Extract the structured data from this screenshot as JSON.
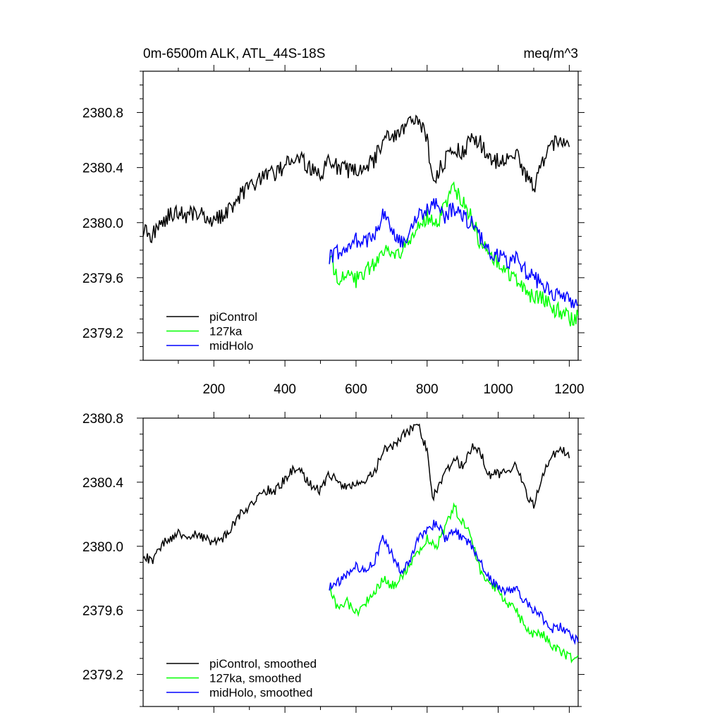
{
  "chart_data": [
    {
      "type": "line",
      "title_left": "0m-6500m ALK, ATL_44S-18S",
      "title_right": "meq/m^3",
      "xlabel": "",
      "ylabel": "",
      "xlim": [
        1,
        1225
      ],
      "ylim": [
        2379.0,
        2381.1
      ],
      "xticks": [
        200,
        400,
        600,
        800,
        1000,
        1200
      ],
      "xtick_labels": [
        "200",
        "400",
        "600",
        "800",
        "1000",
        "1200"
      ],
      "yticks": [
        2379.2,
        2379.6,
        2380.0,
        2380.4,
        2380.8
      ],
      "ytick_labels": [
        "2379.2",
        "2379.6",
        "2380.0",
        "2380.4",
        "2380.8"
      ],
      "grid": false,
      "legend_position": "bottom-left",
      "series": [
        {
          "name": "piControl",
          "color": "#000000",
          "x": [
            1,
            25,
            50,
            75,
            100,
            125,
            150,
            175,
            200,
            225,
            250,
            275,
            300,
            325,
            350,
            375,
            400,
            425,
            450,
            475,
            500,
            525,
            550,
            575,
            600,
            625,
            650,
            675,
            700,
            725,
            750,
            775,
            800,
            815,
            825,
            850,
            875,
            900,
            925,
            950,
            975,
            1000,
            1025,
            1050,
            1075,
            1100,
            1125,
            1150,
            1175,
            1200
          ],
          "y": [
            2379.95,
            2379.9,
            2380.0,
            2380.05,
            2380.08,
            2380.05,
            2380.08,
            2380.05,
            2380.02,
            2380.05,
            2380.12,
            2380.2,
            2380.25,
            2380.3,
            2380.35,
            2380.35,
            2380.42,
            2380.48,
            2380.45,
            2380.38,
            2380.35,
            2380.45,
            2380.4,
            2380.38,
            2380.38,
            2380.42,
            2380.45,
            2380.6,
            2380.62,
            2380.68,
            2380.72,
            2380.75,
            2380.6,
            2380.3,
            2380.35,
            2380.45,
            2380.55,
            2380.5,
            2380.62,
            2380.58,
            2380.45,
            2380.45,
            2380.48,
            2380.5,
            2380.35,
            2380.25,
            2380.45,
            2380.55,
            2380.62,
            2380.55
          ]
        },
        {
          "name": "127ka",
          "color": "#00ff00",
          "x": [
            525,
            550,
            575,
            600,
            625,
            650,
            675,
            700,
            725,
            750,
            775,
            800,
            825,
            850,
            875,
            900,
            925,
            950,
            975,
            1000,
            1025,
            1050,
            1075,
            1100,
            1125,
            1150,
            1175,
            1200,
            1225
          ],
          "y": [
            2379.75,
            2379.6,
            2379.65,
            2379.58,
            2379.65,
            2379.7,
            2379.8,
            2379.75,
            2379.8,
            2379.88,
            2379.95,
            2380.05,
            2380.0,
            2380.1,
            2380.25,
            2380.15,
            2380.05,
            2379.85,
            2379.78,
            2379.72,
            2379.65,
            2379.6,
            2379.5,
            2379.45,
            2379.45,
            2379.38,
            2379.35,
            2379.3,
            2379.32
          ]
        },
        {
          "name": "midHolo",
          "color": "#0000ff",
          "x": [
            525,
            550,
            575,
            600,
            625,
            650,
            675,
            700,
            725,
            750,
            775,
            800,
            825,
            850,
            875,
            900,
            925,
            950,
            975,
            1000,
            1025,
            1050,
            1075,
            1100,
            1125,
            1150,
            1175,
            1200,
            1225
          ],
          "y": [
            2379.75,
            2379.78,
            2379.82,
            2379.88,
            2379.85,
            2379.9,
            2380.05,
            2379.95,
            2379.85,
            2379.9,
            2380.05,
            2380.1,
            2380.15,
            2380.05,
            2380.1,
            2380.05,
            2380.0,
            2379.9,
            2379.8,
            2379.75,
            2379.72,
            2379.75,
            2379.65,
            2379.6,
            2379.55,
            2379.48,
            2379.5,
            2379.45,
            2379.4
          ]
        }
      ],
      "noise_amplitude": 0.06
    },
    {
      "type": "line",
      "xlabel": "",
      "ylabel": "",
      "xlim": [
        1,
        1225
      ],
      "ylim": [
        2379.0,
        2380.8
      ],
      "xticks": [
        200,
        400,
        600,
        800,
        1000,
        1200
      ],
      "yticks": [
        2379.2,
        2379.6,
        2380.0,
        2380.4,
        2380.8
      ],
      "ytick_labels": [
        "2379.2",
        "2379.6",
        "2380.0",
        "2380.4",
        "2380.8"
      ],
      "grid": false,
      "legend_position": "bottom-left",
      "series": [
        {
          "name": "piControl, smoothed",
          "color": "#000000",
          "x": [
            1,
            25,
            50,
            75,
            100,
            125,
            150,
            175,
            200,
            225,
            250,
            275,
            300,
            325,
            350,
            375,
            400,
            425,
            450,
            475,
            500,
            525,
            550,
            575,
            600,
            625,
            650,
            675,
            700,
            725,
            750,
            775,
            800,
            815,
            825,
            850,
            875,
            900,
            925,
            950,
            975,
            1000,
            1025,
            1050,
            1075,
            1100,
            1125,
            1150,
            1175,
            1200
          ],
          "y": [
            2379.95,
            2379.9,
            2380.0,
            2380.05,
            2380.08,
            2380.05,
            2380.08,
            2380.05,
            2380.02,
            2380.05,
            2380.12,
            2380.2,
            2380.25,
            2380.3,
            2380.35,
            2380.35,
            2380.42,
            2380.48,
            2380.45,
            2380.38,
            2380.35,
            2380.45,
            2380.4,
            2380.38,
            2380.38,
            2380.42,
            2380.45,
            2380.6,
            2380.62,
            2380.68,
            2380.72,
            2380.75,
            2380.6,
            2380.3,
            2380.35,
            2380.45,
            2380.55,
            2380.5,
            2380.62,
            2380.58,
            2380.45,
            2380.45,
            2380.48,
            2380.5,
            2380.35,
            2380.25,
            2380.45,
            2380.55,
            2380.62,
            2380.55
          ]
        },
        {
          "name": "127ka, smoothed",
          "color": "#00ff00",
          "x": [
            525,
            550,
            575,
            600,
            625,
            650,
            675,
            700,
            725,
            750,
            775,
            800,
            825,
            850,
            875,
            900,
            925,
            950,
            975,
            1000,
            1025,
            1050,
            1075,
            1100,
            1125,
            1150,
            1175,
            1200,
            1225
          ],
          "y": [
            2379.75,
            2379.6,
            2379.65,
            2379.58,
            2379.65,
            2379.7,
            2379.8,
            2379.75,
            2379.8,
            2379.88,
            2379.95,
            2380.05,
            2380.0,
            2380.1,
            2380.25,
            2380.15,
            2380.05,
            2379.85,
            2379.78,
            2379.72,
            2379.65,
            2379.6,
            2379.5,
            2379.45,
            2379.45,
            2379.38,
            2379.35,
            2379.3,
            2379.32
          ]
        },
        {
          "name": "midHolo, smoothed",
          "color": "#0000ff",
          "x": [
            525,
            550,
            575,
            600,
            625,
            650,
            675,
            700,
            725,
            750,
            775,
            800,
            825,
            850,
            875,
            900,
            925,
            950,
            975,
            1000,
            1025,
            1050,
            1075,
            1100,
            1125,
            1150,
            1175,
            1200,
            1225
          ],
          "y": [
            2379.75,
            2379.78,
            2379.82,
            2379.88,
            2379.85,
            2379.9,
            2380.05,
            2379.95,
            2379.85,
            2379.9,
            2380.05,
            2380.1,
            2380.15,
            2380.05,
            2380.1,
            2380.05,
            2380.0,
            2379.9,
            2379.8,
            2379.75,
            2379.72,
            2379.75,
            2379.65,
            2379.6,
            2379.55,
            2379.48,
            2379.5,
            2379.45,
            2379.4
          ]
        }
      ],
      "noise_amplitude": 0.03
    }
  ]
}
